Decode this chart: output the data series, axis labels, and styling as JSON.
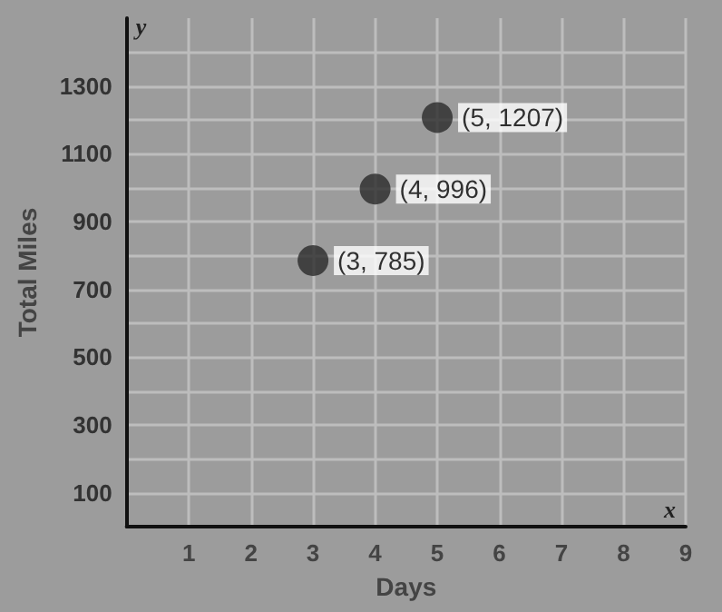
{
  "chart_data": {
    "type": "scatter",
    "xlabel": "Days",
    "ylabel": "Total Miles",
    "x": [
      3,
      4,
      5
    ],
    "values": [
      785,
      996,
      1207
    ],
    "value_labels": [
      "(3, 785)",
      "(4, 996)",
      "(5, 1207)"
    ],
    "color": "#2b2b2b",
    "marker": "circle",
    "grid": true,
    "xlim": [
      0,
      9
    ],
    "xticks": [
      1,
      2,
      3,
      4,
      5,
      6,
      7,
      8,
      9
    ],
    "ylim": [
      0,
      1500
    ],
    "yticks": [
      100,
      {
        "value": 200,
        "label": null
      },
      300,
      {
        "value": 400,
        "label": null
      },
      500,
      {
        "value": 600,
        "label": null
      },
      700,
      {
        "value": 800,
        "label": null
      },
      900,
      {
        "value": 1000,
        "label": null
      },
      1100,
      {
        "value": 1200,
        "label": null
      },
      1300,
      {
        "value": 1400,
        "label": null
      }
    ],
    "annotations": [
      "x",
      "y"
    ]
  }
}
